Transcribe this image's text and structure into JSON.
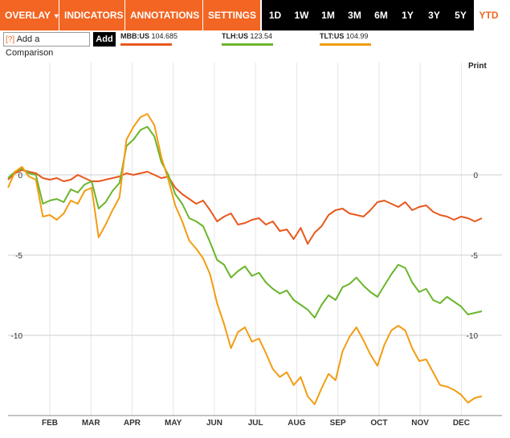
{
  "toolbar": {
    "menus": [
      "OVERLAY",
      "INDICATORS",
      "ANNOTATIONS",
      "SETTINGS"
    ],
    "ranges": [
      "1D",
      "1W",
      "1M",
      "3M",
      "6M",
      "1Y",
      "3Y",
      "5Y",
      "YTD"
    ],
    "active_range": "YTD"
  },
  "compare": {
    "help": "[?]",
    "label": "Add a Comparison",
    "add": "Add"
  },
  "legend": [
    {
      "symbol": "MBB:US",
      "value": "104.685",
      "color": "#e8581c"
    },
    {
      "symbol": "TLH:US",
      "value": "123.54",
      "color": "#6bb52c"
    },
    {
      "symbol": "TLT:US",
      "value": "104.99",
      "color": "#f39c12"
    }
  ],
  "print_label": "Print",
  "chart_data": {
    "type": "line",
    "x_labels": [
      "FEB",
      "MAR",
      "APR",
      "MAY",
      "JUN",
      "JUL",
      "AUG",
      "SEP",
      "OCT",
      "NOV",
      "DEC"
    ],
    "y_ticks": [
      0,
      -5,
      -10
    ],
    "ylim": [
      -15,
      7
    ],
    "grid": true,
    "series": [
      {
        "name": "MBB:US",
        "color": "#e8581c",
        "x": [
          0,
          5,
          10,
          15,
          20,
          25,
          30,
          35,
          40,
          45,
          50,
          55,
          60,
          65,
          70,
          75,
          80,
          85,
          90,
          95,
          100,
          105,
          110,
          115,
          120,
          125,
          130,
          135,
          140,
          145,
          150,
          155,
          160,
          165,
          170,
          175,
          180,
          185,
          190,
          195,
          200,
          205,
          210,
          215,
          220,
          225,
          230,
          235,
          240,
          245,
          250,
          255,
          260,
          265,
          270,
          275,
          280,
          285,
          290,
          295,
          300,
          305,
          310,
          315,
          320,
          325,
          330,
          335,
          340
        ],
        "y": [
          -0.3,
          0.1,
          0.3,
          0.2,
          0.1,
          -0.2,
          -0.3,
          -0.2,
          -0.4,
          -0.3,
          0.0,
          -0.2,
          -0.4,
          -0.4,
          -0.3,
          -0.2,
          -0.1,
          0.1,
          0.0,
          0.1,
          0.2,
          0.0,
          -0.2,
          -0.1,
          -0.8,
          -1.2,
          -1.5,
          -1.8,
          -1.6,
          -2.2,
          -2.9,
          -2.6,
          -2.4,
          -3.1,
          -3.0,
          -2.8,
          -2.7,
          -3.1,
          -2.9,
          -3.5,
          -3.4,
          -4.0,
          -3.3,
          -4.3,
          -3.6,
          -3.2,
          -2.5,
          -2.2,
          -2.1,
          -2.4,
          -2.5,
          -2.6,
          -2.2,
          -1.7,
          -1.6,
          -1.8,
          -2.0,
          -1.7,
          -2.2,
          -2.0,
          -1.9,
          -2.3,
          -2.5,
          -2.6,
          -2.8,
          -2.6,
          -2.7,
          -2.9,
          -2.7
        ]
      },
      {
        "name": "TLH:US",
        "color": "#6bb52c",
        "x": [
          0,
          5,
          10,
          15,
          20,
          25,
          30,
          35,
          40,
          45,
          50,
          55,
          60,
          65,
          70,
          75,
          80,
          85,
          90,
          95,
          100,
          105,
          110,
          115,
          120,
          125,
          130,
          135,
          140,
          145,
          150,
          155,
          160,
          165,
          170,
          175,
          180,
          185,
          190,
          195,
          200,
          205,
          210,
          215,
          220,
          225,
          230,
          235,
          240,
          245,
          250,
          255,
          260,
          265,
          270,
          275,
          280,
          285,
          290,
          295,
          300,
          305,
          310,
          315,
          320,
          325,
          330,
          335,
          340
        ],
        "y": [
          -0.2,
          0.2,
          0.4,
          0.1,
          0.0,
          -1.8,
          -1.6,
          -1.5,
          -1.7,
          -0.9,
          -1.1,
          -0.6,
          -0.4,
          -2.1,
          -1.7,
          -1.0,
          -0.5,
          1.8,
          2.2,
          2.8,
          3.0,
          2.4,
          0.8,
          0.0,
          -1.2,
          -1.8,
          -2.7,
          -2.9,
          -3.2,
          -4.2,
          -5.3,
          -5.6,
          -6.4,
          -6.0,
          -5.7,
          -6.3,
          -6.1,
          -6.7,
          -7.1,
          -7.4,
          -7.2,
          -7.8,
          -8.1,
          -8.4,
          -8.9,
          -8.1,
          -7.5,
          -7.8,
          -7.0,
          -6.8,
          -6.4,
          -6.9,
          -7.3,
          -7.6,
          -6.9,
          -6.2,
          -5.6,
          -5.8,
          -6.7,
          -7.3,
          -7.1,
          -7.8,
          -8.0,
          -7.6,
          -7.9,
          -8.2,
          -8.7,
          -8.6,
          -8.5
        ]
      },
      {
        "name": "TLT:US",
        "color": "#f39c12",
        "x": [
          0,
          5,
          10,
          15,
          20,
          25,
          30,
          35,
          40,
          45,
          50,
          55,
          60,
          65,
          70,
          75,
          80,
          85,
          90,
          95,
          100,
          105,
          110,
          115,
          120,
          125,
          130,
          135,
          140,
          145,
          150,
          155,
          160,
          165,
          170,
          175,
          180,
          185,
          190,
          195,
          200,
          205,
          210,
          215,
          220,
          225,
          230,
          235,
          240,
          245,
          250,
          255,
          260,
          265,
          270,
          275,
          280,
          285,
          290,
          295,
          300,
          305,
          310,
          315,
          320,
          325,
          330,
          335,
          340
        ],
        "y": [
          -0.8,
          0.2,
          0.5,
          -0.1,
          -0.3,
          -2.6,
          -2.5,
          -2.8,
          -2.4,
          -1.6,
          -1.8,
          -1.0,
          -0.8,
          -3.9,
          -3.1,
          -2.2,
          -1.4,
          2.2,
          3.0,
          3.6,
          3.8,
          3.1,
          1.1,
          -0.3,
          -1.9,
          -2.9,
          -4.1,
          -4.6,
          -5.2,
          -6.2,
          -8.0,
          -9.3,
          -10.8,
          -9.8,
          -9.5,
          -10.4,
          -10.2,
          -11.1,
          -12.1,
          -12.6,
          -12.3,
          -13.1,
          -12.6,
          -13.8,
          -14.3,
          -13.3,
          -12.4,
          -12.8,
          -11.0,
          -10.1,
          -9.5,
          -10.3,
          -11.2,
          -11.9,
          -10.6,
          -9.7,
          -9.4,
          -9.7,
          -10.8,
          -11.6,
          -11.5,
          -12.3,
          -13.1,
          -13.2,
          -13.4,
          -13.7,
          -14.2,
          -13.9,
          -13.8
        ]
      }
    ]
  }
}
